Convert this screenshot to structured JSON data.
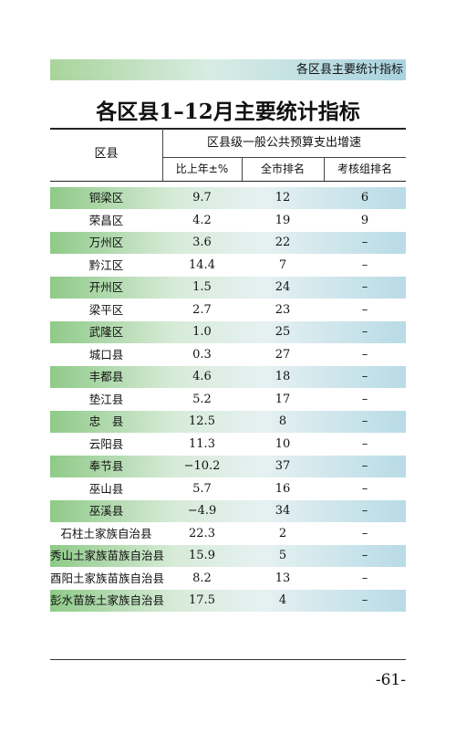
{
  "header": {
    "section": "各区县主要统计指标"
  },
  "title": "各区县1–12月主要统计指标",
  "table": {
    "columns": {
      "district": "区县",
      "group": "区县级一般公共预算支出增速",
      "sub": [
        "比上年±%",
        "全市排名",
        "考核组排名"
      ]
    },
    "rows": [
      [
        "铜梁区",
        "9.7",
        "12",
        "6"
      ],
      [
        "荣昌区",
        "4.2",
        "19",
        "9"
      ],
      [
        "万州区",
        "3.6",
        "22",
        "–"
      ],
      [
        "黔江区",
        "14.4",
        "7",
        "–"
      ],
      [
        "开州区",
        "1.5",
        "24",
        "–"
      ],
      [
        "梁平区",
        "2.7",
        "23",
        "–"
      ],
      [
        "武隆区",
        "1.0",
        "25",
        "–"
      ],
      [
        "城口县",
        "0.3",
        "27",
        "–"
      ],
      [
        "丰都县",
        "4.6",
        "18",
        "–"
      ],
      [
        "垫江县",
        "5.2",
        "17",
        "–"
      ],
      [
        "忠　县",
        "12.5",
        "8",
        "–"
      ],
      [
        "云阳县",
        "11.3",
        "10",
        "–"
      ],
      [
        "奉节县",
        "−10.2",
        "37",
        "–"
      ],
      [
        "巫山县",
        "5.7",
        "16",
        "–"
      ],
      [
        "巫溪县",
        "−4.9",
        "34",
        "–"
      ],
      [
        "石柱土家族自治县",
        "22.3",
        "2",
        "–"
      ],
      [
        "秀山土家族苗族自治县",
        "15.9",
        "5",
        "–"
      ],
      [
        "酉阳土家族苗族自治县",
        "8.2",
        "13",
        "–"
      ],
      [
        "彭水苗族土家族自治县",
        "17.5",
        "4",
        "–"
      ]
    ]
  },
  "footer": {
    "page": "-61-"
  }
}
